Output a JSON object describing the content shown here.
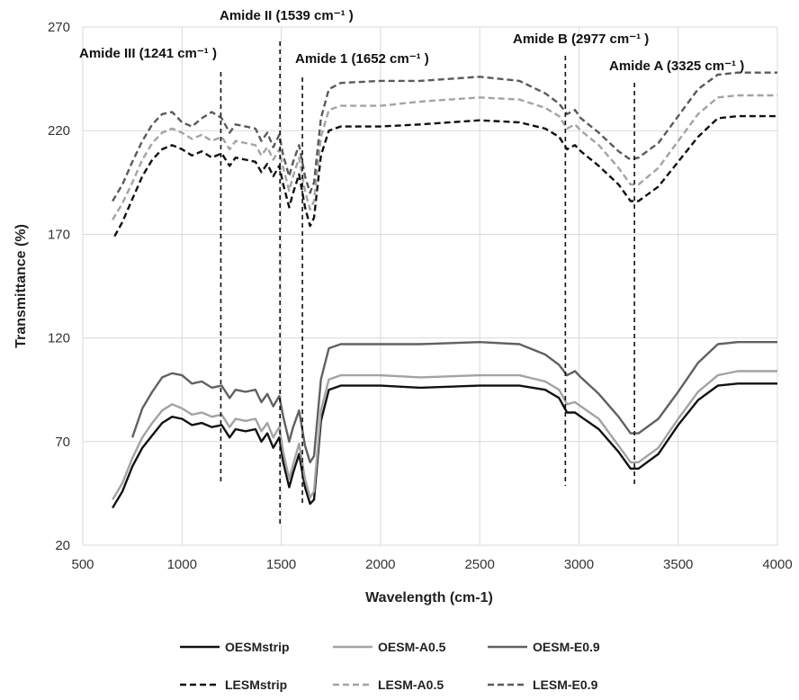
{
  "chart_data": {
    "type": "line",
    "xlabel": "Wavelength (cm-1)",
    "ylabel": "Transmittance (%)",
    "xlim": [
      500,
      4000
    ],
    "ylim": [
      20,
      270
    ],
    "xticks": [
      500,
      1000,
      1500,
      2000,
      2500,
      3000,
      3500,
      4000
    ],
    "yticks": [
      20,
      70,
      120,
      170,
      220,
      270
    ],
    "grid": true,
    "legend_position": "bottom",
    "annotations": [
      {
        "label": "Amide III (1241 cm⁻¹ )",
        "x": 1241
      },
      {
        "label": "Amide II (1539 cm⁻¹ )",
        "x": 1539
      },
      {
        "label": "Amide 1 (1652 cm⁻¹ )",
        "x": 1652
      },
      {
        "label": "Amide B (2977 cm⁻¹ )",
        "x": 2977
      },
      {
        "label": "Amide A (3325 cm⁻¹ )",
        "x": 3325
      }
    ],
    "series": [
      {
        "name": "OESMstrip",
        "color": "#111111",
        "dash": false,
        "points": [
          [
            650,
            38
          ],
          [
            700,
            46
          ],
          [
            750,
            58
          ],
          [
            800,
            67
          ],
          [
            850,
            73
          ],
          [
            900,
            79
          ],
          [
            950,
            82
          ],
          [
            1000,
            81
          ],
          [
            1050,
            78
          ],
          [
            1100,
            79
          ],
          [
            1150,
            77
          ],
          [
            1200,
            78
          ],
          [
            1240,
            72
          ],
          [
            1270,
            76
          ],
          [
            1320,
            75
          ],
          [
            1370,
            76
          ],
          [
            1400,
            70
          ],
          [
            1430,
            74
          ],
          [
            1460,
            67
          ],
          [
            1490,
            72
          ],
          [
            1510,
            60
          ],
          [
            1540,
            48
          ],
          [
            1560,
            55
          ],
          [
            1590,
            64
          ],
          [
            1620,
            48
          ],
          [
            1645,
            40
          ],
          [
            1665,
            42
          ],
          [
            1700,
            80
          ],
          [
            1740,
            95
          ],
          [
            1800,
            97
          ],
          [
            2000,
            97
          ],
          [
            2200,
            96
          ],
          [
            2500,
            97
          ],
          [
            2700,
            97
          ],
          [
            2830,
            95
          ],
          [
            2900,
            91
          ],
          [
            2940,
            84
          ],
          [
            2980,
            84
          ],
          [
            3010,
            82
          ],
          [
            3100,
            76
          ],
          [
            3200,
            65
          ],
          [
            3260,
            57
          ],
          [
            3300,
            57
          ],
          [
            3400,
            64
          ],
          [
            3500,
            78
          ],
          [
            3600,
            90
          ],
          [
            3700,
            97
          ],
          [
            3800,
            98
          ],
          [
            4000,
            98
          ]
        ]
      },
      {
        "name": "OESM-A0.5",
        "color": "#a3a3a3",
        "dash": false,
        "points": [
          [
            650,
            42
          ],
          [
            700,
            50
          ],
          [
            750,
            62
          ],
          [
            800,
            72
          ],
          [
            850,
            79
          ],
          [
            900,
            85
          ],
          [
            950,
            88
          ],
          [
            1000,
            86
          ],
          [
            1050,
            83
          ],
          [
            1100,
            84
          ],
          [
            1150,
            82
          ],
          [
            1200,
            83
          ],
          [
            1240,
            77
          ],
          [
            1270,
            81
          ],
          [
            1320,
            80
          ],
          [
            1370,
            81
          ],
          [
            1400,
            75
          ],
          [
            1430,
            79
          ],
          [
            1460,
            72
          ],
          [
            1490,
            77
          ],
          [
            1510,
            65
          ],
          [
            1540,
            52
          ],
          [
            1560,
            59
          ],
          [
            1590,
            69
          ],
          [
            1620,
            52
          ],
          [
            1645,
            43
          ],
          [
            1665,
            46
          ],
          [
            1700,
            85
          ],
          [
            1740,
            100
          ],
          [
            1800,
            102
          ],
          [
            2000,
            102
          ],
          [
            2200,
            101
          ],
          [
            2500,
            102
          ],
          [
            2700,
            102
          ],
          [
            2830,
            99
          ],
          [
            2900,
            95
          ],
          [
            2940,
            88
          ],
          [
            2980,
            89
          ],
          [
            3010,
            87
          ],
          [
            3100,
            81
          ],
          [
            3200,
            68
          ],
          [
            3260,
            60
          ],
          [
            3300,
            60
          ],
          [
            3400,
            67
          ],
          [
            3500,
            81
          ],
          [
            3600,
            94
          ],
          [
            3700,
            102
          ],
          [
            3800,
            104
          ],
          [
            4000,
            104
          ]
        ]
      },
      {
        "name": "OESM-E0.9",
        "color": "#616161",
        "dash": false,
        "points": [
          [
            750,
            72
          ],
          [
            800,
            86
          ],
          [
            850,
            94
          ],
          [
            900,
            101
          ],
          [
            950,
            103
          ],
          [
            1000,
            102
          ],
          [
            1050,
            98
          ],
          [
            1100,
            99
          ],
          [
            1150,
            96
          ],
          [
            1200,
            97
          ],
          [
            1240,
            91
          ],
          [
            1270,
            95
          ],
          [
            1320,
            94
          ],
          [
            1370,
            95
          ],
          [
            1400,
            89
          ],
          [
            1430,
            93
          ],
          [
            1460,
            87
          ],
          [
            1490,
            92
          ],
          [
            1510,
            82
          ],
          [
            1540,
            70
          ],
          [
            1560,
            77
          ],
          [
            1590,
            85
          ],
          [
            1620,
            68
          ],
          [
            1645,
            60
          ],
          [
            1665,
            63
          ],
          [
            1700,
            100
          ],
          [
            1740,
            115
          ],
          [
            1800,
            117
          ],
          [
            2000,
            117
          ],
          [
            2200,
            117
          ],
          [
            2500,
            118
          ],
          [
            2700,
            117
          ],
          [
            2830,
            112
          ],
          [
            2900,
            107
          ],
          [
            2940,
            102
          ],
          [
            2980,
            104
          ],
          [
            3010,
            101
          ],
          [
            3100,
            93
          ],
          [
            3200,
            82
          ],
          [
            3260,
            74
          ],
          [
            3300,
            74
          ],
          [
            3400,
            81
          ],
          [
            3500,
            94
          ],
          [
            3600,
            108
          ],
          [
            3700,
            117
          ],
          [
            3800,
            118
          ],
          [
            4000,
            118
          ]
        ]
      },
      {
        "name": "LESMstrip",
        "color": "#111111",
        "dash": true,
        "points": [
          [
            660,
            169
          ],
          [
            700,
            176
          ],
          [
            750,
            187
          ],
          [
            800,
            198
          ],
          [
            850,
            206
          ],
          [
            900,
            211
          ],
          [
            950,
            213
          ],
          [
            1000,
            211
          ],
          [
            1050,
            208
          ],
          [
            1100,
            210
          ],
          [
            1150,
            207
          ],
          [
            1200,
            209
          ],
          [
            1240,
            203
          ],
          [
            1270,
            207
          ],
          [
            1320,
            206
          ],
          [
            1370,
            205
          ],
          [
            1400,
            200
          ],
          [
            1430,
            204
          ],
          [
            1460,
            198
          ],
          [
            1490,
            203
          ],
          [
            1510,
            194
          ],
          [
            1540,
            183
          ],
          [
            1560,
            190
          ],
          [
            1590,
            199
          ],
          [
            1620,
            183
          ],
          [
            1645,
            174
          ],
          [
            1665,
            178
          ],
          [
            1700,
            208
          ],
          [
            1740,
            220
          ],
          [
            1800,
            222
          ],
          [
            2000,
            222
          ],
          [
            2200,
            223
          ],
          [
            2500,
            225
          ],
          [
            2700,
            224
          ],
          [
            2830,
            221
          ],
          [
            2900,
            217
          ],
          [
            2940,
            211
          ],
          [
            2980,
            213
          ],
          [
            3010,
            210
          ],
          [
            3100,
            203
          ],
          [
            3200,
            194
          ],
          [
            3260,
            186
          ],
          [
            3300,
            186
          ],
          [
            3400,
            193
          ],
          [
            3500,
            205
          ],
          [
            3600,
            217
          ],
          [
            3700,
            226
          ],
          [
            3800,
            227
          ],
          [
            4000,
            227
          ]
        ]
      },
      {
        "name": "LESM-A0.5",
        "color": "#a3a3a3",
        "dash": true,
        "points": [
          [
            650,
            177
          ],
          [
            700,
            185
          ],
          [
            750,
            195
          ],
          [
            800,
            206
          ],
          [
            850,
            214
          ],
          [
            900,
            219
          ],
          [
            950,
            221
          ],
          [
            1000,
            219
          ],
          [
            1050,
            216
          ],
          [
            1100,
            218
          ],
          [
            1150,
            215
          ],
          [
            1200,
            217
          ],
          [
            1240,
            211
          ],
          [
            1270,
            215
          ],
          [
            1320,
            214
          ],
          [
            1370,
            213
          ],
          [
            1400,
            208
          ],
          [
            1430,
            212
          ],
          [
            1460,
            206
          ],
          [
            1490,
            211
          ],
          [
            1510,
            202
          ],
          [
            1540,
            191
          ],
          [
            1560,
            198
          ],
          [
            1590,
            207
          ],
          [
            1620,
            191
          ],
          [
            1645,
            182
          ],
          [
            1665,
            186
          ],
          [
            1700,
            217
          ],
          [
            1740,
            230
          ],
          [
            1800,
            232
          ],
          [
            2000,
            232
          ],
          [
            2200,
            234
          ],
          [
            2500,
            236
          ],
          [
            2700,
            235
          ],
          [
            2830,
            231
          ],
          [
            2900,
            227
          ],
          [
            2940,
            221
          ],
          [
            2980,
            223
          ],
          [
            3010,
            220
          ],
          [
            3100,
            213
          ],
          [
            3200,
            202
          ],
          [
            3260,
            194
          ],
          [
            3300,
            194
          ],
          [
            3400,
            202
          ],
          [
            3500,
            215
          ],
          [
            3600,
            228
          ],
          [
            3700,
            236
          ],
          [
            3800,
            237
          ],
          [
            4000,
            237
          ]
        ]
      },
      {
        "name": "LESM-E0.9",
        "color": "#5a5a5a",
        "dash": true,
        "points": [
          [
            650,
            186
          ],
          [
            700,
            194
          ],
          [
            750,
            205
          ],
          [
            800,
            215
          ],
          [
            850,
            223
          ],
          [
            900,
            228
          ],
          [
            950,
            229
          ],
          [
            1000,
            224
          ],
          [
            1050,
            222
          ],
          [
            1100,
            226
          ],
          [
            1150,
            229
          ],
          [
            1200,
            226
          ],
          [
            1240,
            219
          ],
          [
            1270,
            223
          ],
          [
            1320,
            222
          ],
          [
            1370,
            221
          ],
          [
            1400,
            215
          ],
          [
            1430,
            219
          ],
          [
            1460,
            212
          ],
          [
            1490,
            218
          ],
          [
            1510,
            208
          ],
          [
            1540,
            198
          ],
          [
            1560,
            205
          ],
          [
            1590,
            213
          ],
          [
            1620,
            198
          ],
          [
            1645,
            190
          ],
          [
            1665,
            195
          ],
          [
            1700,
            226
          ],
          [
            1740,
            240
          ],
          [
            1800,
            243
          ],
          [
            2000,
            244
          ],
          [
            2200,
            244
          ],
          [
            2500,
            246
          ],
          [
            2700,
            244
          ],
          [
            2830,
            238
          ],
          [
            2900,
            233
          ],
          [
            2940,
            228
          ],
          [
            2980,
            230
          ],
          [
            3010,
            226
          ],
          [
            3100,
            219
          ],
          [
            3200,
            210
          ],
          [
            3260,
            206
          ],
          [
            3300,
            207
          ],
          [
            3400,
            214
          ],
          [
            3500,
            227
          ],
          [
            3600,
            240
          ],
          [
            3700,
            247
          ],
          [
            3800,
            248
          ],
          [
            4000,
            248
          ]
        ]
      }
    ]
  }
}
